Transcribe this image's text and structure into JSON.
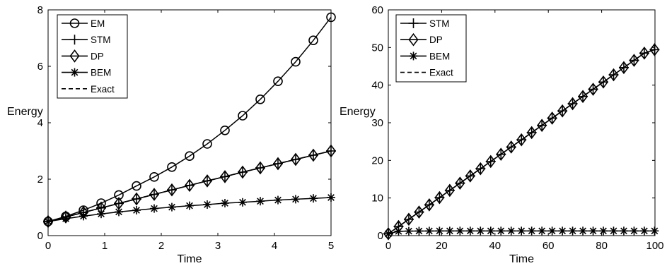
{
  "chart_data": [
    {
      "type": "line",
      "xlabel": "Time",
      "ylabel": "Energy",
      "xlim": [
        0,
        5
      ],
      "ylim": [
        0,
        8
      ],
      "xticks": [
        0,
        1,
        2,
        3,
        4,
        5
      ],
      "yticks": [
        0,
        2,
        4,
        6,
        8
      ],
      "grid": false,
      "legend": "top-left",
      "x": [
        0,
        0.3125,
        0.625,
        0.9375,
        1.25,
        1.5625,
        1.875,
        2.1875,
        2.5,
        2.8125,
        3.125,
        3.4375,
        3.75,
        4.0625,
        4.375,
        4.6875,
        5
      ],
      "series": [
        {
          "name": "EM",
          "marker": "circle",
          "style": "solid",
          "values": [
            0.5,
            0.68,
            0.9,
            1.15,
            1.44,
            1.76,
            2.08,
            2.43,
            2.82,
            3.25,
            3.73,
            4.25,
            4.83,
            5.47,
            6.16,
            6.92,
            7.74
          ]
        },
        {
          "name": "STM",
          "marker": "plus",
          "style": "solid",
          "values": [
            0.5,
            0.66,
            0.82,
            0.98,
            1.14,
            1.3,
            1.46,
            1.62,
            1.78,
            1.94,
            2.09,
            2.25,
            2.4,
            2.55,
            2.7,
            2.85,
            3.0
          ]
        },
        {
          "name": "DP",
          "marker": "diamond",
          "style": "solid",
          "values": [
            0.5,
            0.66,
            0.82,
            0.98,
            1.14,
            1.3,
            1.46,
            1.62,
            1.78,
            1.94,
            2.09,
            2.25,
            2.4,
            2.55,
            2.7,
            2.85,
            3.0
          ]
        },
        {
          "name": "BEM",
          "marker": "asterisk",
          "style": "solid",
          "values": [
            0.5,
            0.6,
            0.69,
            0.77,
            0.84,
            0.9,
            0.96,
            1.01,
            1.06,
            1.1,
            1.15,
            1.18,
            1.22,
            1.26,
            1.29,
            1.32,
            1.35
          ]
        },
        {
          "name": "Exact",
          "marker": "none",
          "style": "dashed",
          "values": [
            0.5,
            0.66,
            0.82,
            0.98,
            1.14,
            1.3,
            1.46,
            1.62,
            1.78,
            1.94,
            2.09,
            2.25,
            2.4,
            2.55,
            2.7,
            2.85,
            3.0
          ]
        }
      ]
    },
    {
      "type": "line",
      "xlabel": "Time",
      "ylabel": "Energy",
      "xlim": [
        0,
        100
      ],
      "ylim": [
        0,
        60
      ],
      "xticks": [
        0,
        20,
        40,
        60,
        80,
        100
      ],
      "yticks": [
        0,
        10,
        20,
        30,
        40,
        50,
        60
      ],
      "grid": false,
      "legend": "top-left",
      "x": [
        0,
        3.84,
        7.68,
        11.52,
        15.36,
        19.2,
        23.04,
        26.88,
        30.72,
        34.56,
        38.4,
        42.24,
        46.08,
        49.92,
        53.76,
        57.6,
        61.44,
        65.28,
        69.12,
        72.96,
        76.8,
        80.64,
        84.48,
        88.32,
        92.16,
        96,
        99.84
      ],
      "series": [
        {
          "name": "STM",
          "marker": "plus",
          "style": "solid",
          "values": [
            0.5,
            2.42,
            4.34,
            6.26,
            8.18,
            10.1,
            12.02,
            13.94,
            15.86,
            17.78,
            19.7,
            21.62,
            23.54,
            25.46,
            27.38,
            29.3,
            31.22,
            33.14,
            35.06,
            36.98,
            38.9,
            40.82,
            42.74,
            44.66,
            46.58,
            48.5,
            49.42
          ]
        },
        {
          "name": "DP",
          "marker": "diamond",
          "style": "solid",
          "values": [
            0.5,
            2.42,
            4.34,
            6.26,
            8.18,
            10.1,
            12.02,
            13.94,
            15.86,
            17.78,
            19.7,
            21.62,
            23.54,
            25.46,
            27.38,
            29.3,
            31.22,
            33.14,
            35.06,
            36.98,
            38.9,
            40.82,
            42.74,
            44.66,
            46.58,
            48.5,
            49.42
          ]
        },
        {
          "name": "BEM",
          "marker": "asterisk",
          "style": "solid",
          "values": [
            0.5,
            1.15,
            1.2,
            1.22,
            1.23,
            1.24,
            1.24,
            1.25,
            1.25,
            1.25,
            1.25,
            1.25,
            1.25,
            1.25,
            1.25,
            1.25,
            1.25,
            1.25,
            1.25,
            1.25,
            1.25,
            1.25,
            1.25,
            1.25,
            1.25,
            1.25,
            1.25
          ]
        },
        {
          "name": "Exact",
          "marker": "none",
          "style": "dashed",
          "values": [
            0.5,
            2.42,
            4.34,
            6.26,
            8.18,
            10.1,
            12.02,
            13.94,
            15.86,
            17.78,
            19.7,
            21.62,
            23.54,
            25.46,
            27.38,
            29.3,
            31.22,
            33.14,
            35.06,
            36.98,
            38.9,
            40.82,
            42.74,
            44.66,
            46.58,
            48.5,
            49.42
          ]
        }
      ]
    }
  ]
}
